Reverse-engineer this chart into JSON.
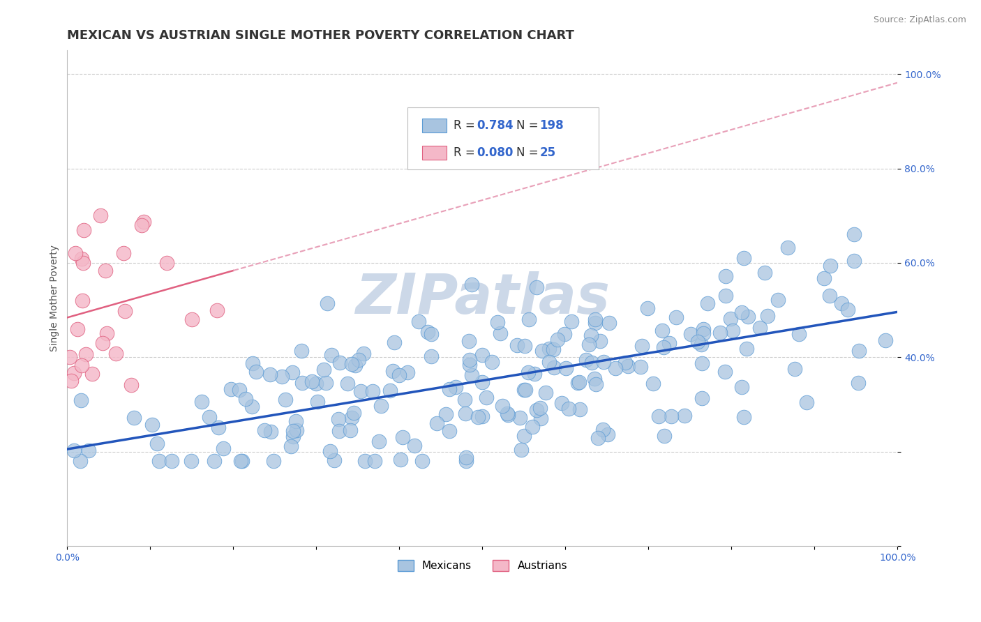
{
  "title": "MEXICAN VS AUSTRIAN SINGLE MOTHER POVERTY CORRELATION CHART",
  "source_text": "Source: ZipAtlas.com",
  "ylabel": "Single Mother Poverty",
  "xlim": [
    0,
    1
  ],
  "ylim": [
    0,
    1.05
  ],
  "xtick_positions": [
    0.0,
    0.1,
    0.2,
    0.3,
    0.4,
    0.5,
    0.6,
    0.7,
    0.8,
    0.9,
    1.0
  ],
  "ytick_positions": [
    0.0,
    0.2,
    0.4,
    0.6,
    0.8,
    1.0
  ],
  "ytick_labels": [
    "",
    "",
    "40.0%",
    "60.0%",
    "80.0%",
    "100.0%"
  ],
  "mexican_color": "#a8c4e0",
  "mexican_edge_color": "#5b9bd5",
  "austrian_color": "#f4b8c8",
  "austrian_edge_color": "#e06080",
  "mexican_line_color": "#2255bb",
  "austrian_line_color": "#e06080",
  "austrian_dash_color": "#e8a0b8",
  "mexican_R": 0.784,
  "mexican_N": 198,
  "austrian_R": 0.08,
  "austrian_N": 25,
  "watermark": "ZIPatlas",
  "watermark_color": "#ccd8e8",
  "background_color": "#ffffff",
  "grid_color": "#cccccc",
  "title_color": "#333333",
  "legend_color": "#3366cc",
  "title_fontsize": 13,
  "axis_label_fontsize": 10,
  "tick_fontsize": 10,
  "legend_fontsize": 12
}
